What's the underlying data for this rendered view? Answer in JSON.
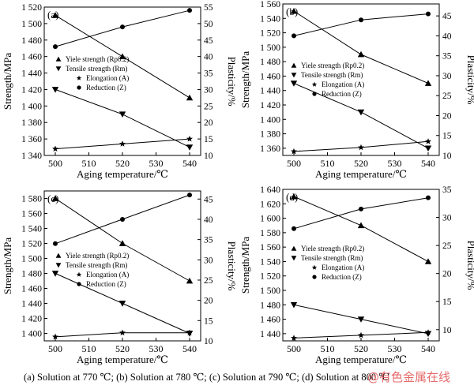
{
  "caption": "(a) Solution at 770 ℃; (b) Solution at 780 ℃; (c) Solution at 790 ℃; (d) Solution at 800 ℃",
  "watermark": "@有色金属在线",
  "chart_data": [
    {
      "type": "line",
      "panel_label": "(a)",
      "x": [
        500,
        520,
        540
      ],
      "xlabel": "Aging temperature/℃",
      "xticks": [
        500,
        510,
        520,
        530,
        540
      ],
      "ylabel_left": "Strength/MPa",
      "ylim_left": [
        1340,
        1520
      ],
      "yticks_left": [
        1340,
        1360,
        1380,
        1400,
        1420,
        1440,
        1460,
        1480,
        1500,
        1520
      ],
      "ytick_labels_left": [
        "1 340",
        "1 360",
        "1 380",
        "1 400",
        "1 420",
        "1 440",
        "1 460",
        "1 480",
        "1 500",
        "1 520"
      ],
      "ylabel_right": "Plasticity/%",
      "ylim_right": [
        10,
        55
      ],
      "yticks_right": [
        10,
        15,
        20,
        25,
        30,
        35,
        40,
        45,
        50,
        55
      ],
      "series": [
        {
          "name": "Yiele strength (Rp0.2)",
          "axis": "left",
          "marker": "triangle-up",
          "values": [
            1510,
            1460,
            1410
          ]
        },
        {
          "name": "Tensile strength (Rm)",
          "axis": "left",
          "marker": "triangle-down",
          "values": [
            1420,
            1390,
            1350
          ]
        },
        {
          "name": "Elongation (A)",
          "axis": "right",
          "marker": "star",
          "values": [
            12,
            13.5,
            15
          ]
        },
        {
          "name": "Reduction (Z)",
          "axis": "right",
          "marker": "circle",
          "values": [
            43,
            49,
            54
          ]
        }
      ]
    },
    {
      "type": "line",
      "panel_label": "(b)",
      "x": [
        500,
        520,
        540
      ],
      "xlabel": "Aging temperature/℃",
      "xticks": [
        500,
        510,
        520,
        530,
        540
      ],
      "ylabel_left": "Strength/MPa",
      "ylim_left": [
        1350,
        1560
      ],
      "yticks_left": [
        1360,
        1380,
        1400,
        1420,
        1440,
        1460,
        1480,
        1500,
        1520,
        1540,
        1560
      ],
      "ytick_labels_left": [
        "1 360",
        "1 380",
        "1 400",
        "1 420",
        "1 440",
        "1 460",
        "1 480",
        "1 500",
        "1 520",
        "1 540",
        "1 560"
      ],
      "ylabel_right": "Plasticity/%",
      "ylim_right": [
        10,
        48
      ],
      "yticks_right": [
        10,
        15,
        20,
        25,
        30,
        35,
        40,
        45
      ],
      "series": [
        {
          "name": "Yiele strength (Rp0.2)",
          "axis": "left",
          "marker": "triangle-up",
          "values": [
            1550,
            1490,
            1450
          ]
        },
        {
          "name": "Tensile strength (Rm)",
          "axis": "left",
          "marker": "triangle-down",
          "values": [
            1450,
            1410,
            1360
          ]
        },
        {
          "name": "Elongation (A)",
          "axis": "right",
          "marker": "star",
          "values": [
            11,
            12,
            13.5
          ]
        },
        {
          "name": "Reduction (Z)",
          "axis": "right",
          "marker": "circle",
          "values": [
            40,
            44,
            45.5
          ]
        }
      ]
    },
    {
      "type": "line",
      "panel_label": "(c)",
      "x": [
        500,
        520,
        540
      ],
      "xlabel": "Aging temperature/℃",
      "xticks": [
        500,
        510,
        520,
        530,
        540
      ],
      "ylabel_left": "Strength/MPa",
      "ylim_left": [
        1390,
        1590
      ],
      "yticks_left": [
        1400,
        1420,
        1440,
        1460,
        1480,
        1500,
        1520,
        1540,
        1560,
        1580
      ],
      "ytick_labels_left": [
        "1 400",
        "1 420",
        "1 440",
        "1 460",
        "1 480",
        "1 500",
        "1 520",
        "1 540",
        "1 560",
        "1 580"
      ],
      "ylabel_right": "Plasticity/%",
      "ylim_right": [
        10,
        47
      ],
      "yticks_right": [
        10,
        15,
        20,
        25,
        30,
        35,
        40,
        45
      ],
      "series": [
        {
          "name": "Yiele strength (Rp0.2)",
          "axis": "left",
          "marker": "triangle-up",
          "values": [
            1580,
            1520,
            1470
          ]
        },
        {
          "name": "Tensile strength (Rm)",
          "axis": "left",
          "marker": "triangle-down",
          "values": [
            1480,
            1440,
            1400
          ]
        },
        {
          "name": "Elongation (A)",
          "axis": "right",
          "marker": "star",
          "values": [
            11,
            12,
            12
          ]
        },
        {
          "name": "Reduction (Z)",
          "axis": "right",
          "marker": "circle",
          "values": [
            34,
            40,
            46
          ]
        }
      ]
    },
    {
      "type": "line",
      "panel_label": "(d)",
      "x": [
        500,
        520,
        540
      ],
      "xlabel": "Aging temperature/℃",
      "xticks": [
        500,
        510,
        520,
        530,
        540
      ],
      "ylabel_left": "Strength/MPa",
      "ylim_left": [
        1430,
        1640
      ],
      "yticks_left": [
        1440,
        1460,
        1480,
        1500,
        1520,
        1540,
        1560,
        1580,
        1600,
        1620,
        1640
      ],
      "ytick_labels_left": [
        "1 440",
        "1 460",
        "1 480",
        "1 500",
        "1 520",
        "1 540",
        "1 560",
        "1 580",
        "1 600",
        "1 620",
        "1 640"
      ],
      "ylabel_right": "Plasticity/%",
      "ylim_right": [
        8,
        35
      ],
      "yticks_right": [
        10,
        15,
        20,
        25,
        30,
        35
      ],
      "series": [
        {
          "name": "Yiele strength (Rp0.2)",
          "axis": "left",
          "marker": "triangle-up",
          "values": [
            1630,
            1590,
            1540
          ]
        },
        {
          "name": "Tensile strength (Rm)",
          "axis": "left",
          "marker": "triangle-down",
          "values": [
            1480,
            1460,
            1440
          ]
        },
        {
          "name": "Elongation (A)",
          "axis": "right",
          "marker": "star",
          "values": [
            8.5,
            9,
            9.5
          ]
        },
        {
          "name": "Reduction (Z)",
          "axis": "right",
          "marker": "circle",
          "values": [
            28,
            31.5,
            33.5
          ]
        }
      ]
    }
  ]
}
